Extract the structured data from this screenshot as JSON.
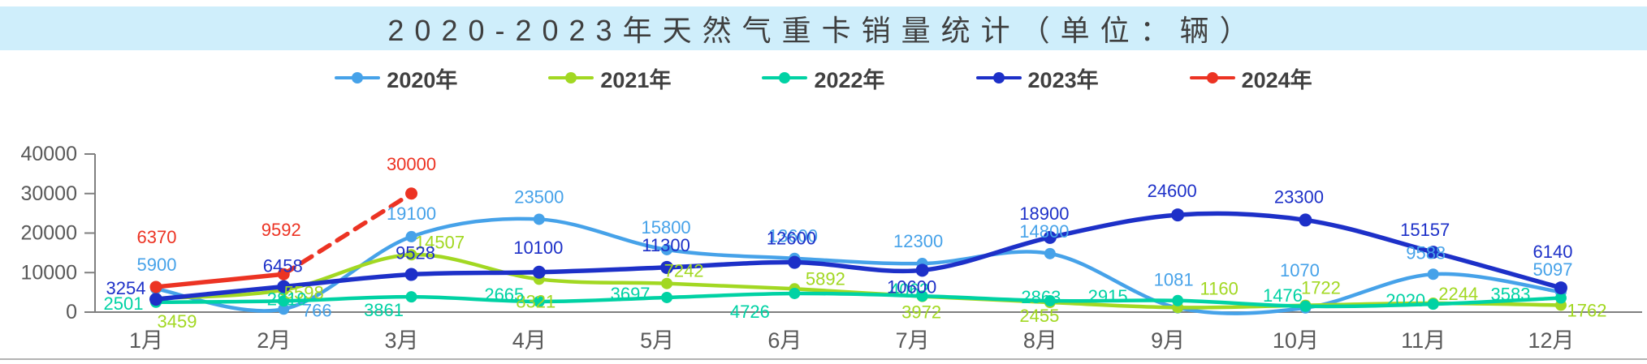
{
  "title": {
    "text": "2020-2023年天然气重卡销量统计（单位：辆）",
    "background": "#cfeefb"
  },
  "chart_data": {
    "type": "line",
    "categories": [
      "1月",
      "2月",
      "3月",
      "4月",
      "5月",
      "6月",
      "7月",
      "8月",
      "9月",
      "10月",
      "11月",
      "12月"
    ],
    "series": [
      {
        "name": "2020年",
        "color": "#46a2e9",
        "values": [
          5900,
          766,
          19100,
          23500,
          15800,
          13600,
          12300,
          14800,
          1081,
          1070,
          9588,
          5097
        ]
      },
      {
        "name": "2021年",
        "color": "#a2d822",
        "values": [
          3459,
          5598,
          14507,
          8321,
          7242,
          5892,
          3972,
          2455,
          1160,
          1722,
          2244,
          1762
        ]
      },
      {
        "name": "2022年",
        "color": "#00d2a4",
        "values": [
          2501,
          2819,
          3861,
          2665,
          3697,
          4726,
          4062,
          2863,
          2915,
          1476,
          2020,
          3583
        ]
      },
      {
        "name": "2023年",
        "color": "#1d30c8",
        "values": [
          3254,
          6458,
          9528,
          10100,
          11300,
          12600,
          10600,
          18900,
          24600,
          23300,
          15157,
          6140
        ]
      },
      {
        "name": "2024年",
        "color": "#ec3323",
        "values": [
          6370,
          9592,
          30000
        ],
        "dash_segment_start": 1
      }
    ],
    "title": "2020-2023年天然气重卡销量统计（单位：辆）",
    "xlabel": "",
    "ylabel": "",
    "ylim": [
      0,
      40000
    ],
    "y_ticks": [
      0,
      10000,
      20000,
      30000,
      40000
    ],
    "legend_position": "top",
    "grid": false,
    "axis_color": "#7f7f7f",
    "tick_label_color": "#595959"
  }
}
